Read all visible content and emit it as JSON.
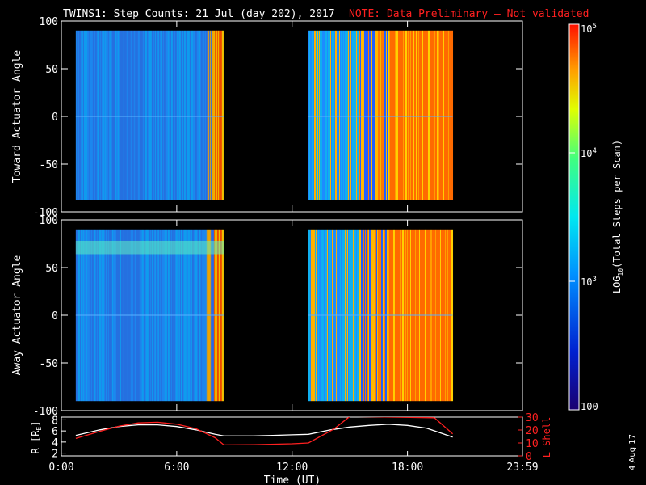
{
  "header": {
    "title": "TWINS1: Step Counts: 21 Jul (day 202), 2017",
    "note": "NOTE: Data Preliminary — Not validated",
    "note_color": "#ff2020"
  },
  "footer": {
    "date_stamp": "4 Aug 17"
  },
  "chart_data": [
    {
      "type": "heatmap",
      "ylabel": "Toward Actuator Angle",
      "ylim": [
        -100,
        100
      ],
      "y_ticks": [
        "100",
        "50",
        "0",
        "-50",
        "-100"
      ],
      "x_range_hours": [
        0,
        23.98
      ],
      "data_segments_hours": [
        [
          0.75,
          8.45
        ],
        [
          12.85,
          20.35
        ]
      ],
      "angle_range_deg": [
        -88,
        90
      ]
    },
    {
      "type": "heatmap",
      "ylabel": "Away Actuator Angle",
      "ylim": [
        -100,
        100
      ],
      "y_ticks": [
        "100",
        "50",
        "0",
        "-50",
        "-100"
      ],
      "x_range_hours": [
        0,
        23.98
      ],
      "data_segments_hours": [
        [
          0.75,
          8.45
        ],
        [
          12.85,
          20.35
        ]
      ],
      "angle_range_deg": [
        -90,
        90
      ]
    },
    {
      "type": "line",
      "xlabel": "Time (UT)",
      "x_ticks": [
        "0:00",
        "6:00",
        "12:00",
        "18:00",
        "23:59"
      ],
      "x_tick_hours": [
        0,
        6,
        12,
        18,
        23.98
      ],
      "ylabel_left": "R [R",
      "ylabel_left_sub": "E",
      "ylabel_left_close": "]",
      "y_ticks_left": [
        "8",
        "6",
        "4",
        "2"
      ],
      "ylim_left": [
        1.5,
        8.5
      ],
      "ylabel_right": "L Shell",
      "y_ticks_right": [
        "30",
        "20",
        "10",
        "0"
      ],
      "ylim_right": [
        0,
        30
      ],
      "series": [
        {
          "color": "#ffffff",
          "axis": "left",
          "x": [
            0.75,
            2,
            3,
            4,
            5,
            6,
            7,
            8,
            8.45,
            9,
            10,
            11,
            12,
            12.85,
            14,
            15,
            16,
            17,
            18,
            19,
            20,
            20.35
          ],
          "y": [
            5.2,
            6.2,
            6.8,
            7.1,
            7.1,
            6.8,
            6.2,
            5.4,
            5.1,
            5.1,
            5.1,
            5.2,
            5.3,
            5.4,
            6.2,
            6.7,
            7.0,
            7.2,
            7.0,
            6.5,
            5.3,
            4.9
          ]
        },
        {
          "color": "#ff2020",
          "axis": "right",
          "x": [
            0.75,
            2,
            3,
            4,
            5,
            6,
            7,
            8,
            8.45,
            10,
            12,
            12.85,
            14.2,
            15.0,
            19.4,
            20.35
          ],
          "y": [
            13.5,
            19.0,
            23.0,
            25.5,
            26.0,
            24.5,
            21.0,
            14.0,
            8.5,
            8.7,
            9.4,
            10.0,
            21.0,
            30.5,
            29.5,
            17.0
          ]
        }
      ]
    }
  ],
  "colorbar": {
    "label_prefix": "LOG",
    "label_sub": "10",
    "label_suffix": "(Total Steps per Scan)",
    "ticks": [
      {
        "label": "100",
        "value": 100
      },
      {
        "label": "10",
        "sup": "3",
        "value": 1000
      },
      {
        "label": "10",
        "sup": "4",
        "value": 10000
      },
      {
        "label": "10",
        "sup": "5",
        "value": 100000
      }
    ],
    "range": [
      100,
      100000
    ]
  }
}
